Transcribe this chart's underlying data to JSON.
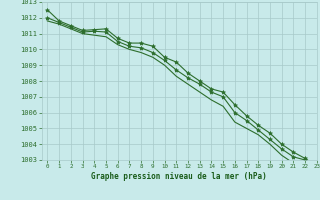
{
  "title": "Graphe pression niveau de la mer (hPa)",
  "x": [
    0,
    1,
    2,
    3,
    4,
    5,
    6,
    7,
    8,
    9,
    10,
    11,
    12,
    13,
    14,
    15,
    16,
    17,
    18,
    19,
    20,
    21,
    22,
    23
  ],
  "line1": [
    1012.5,
    1011.8,
    1011.5,
    1011.2,
    1011.25,
    1011.3,
    1010.7,
    1010.4,
    1010.4,
    1010.2,
    1009.5,
    1009.2,
    1008.5,
    1008.0,
    1007.5,
    1007.3,
    1006.5,
    1005.8,
    1005.2,
    1004.7,
    1004.0,
    1003.5,
    1003.1,
    1002.6
  ],
  "line2": [
    1012.0,
    1011.7,
    1011.4,
    1011.1,
    1011.15,
    1011.1,
    1010.5,
    1010.2,
    1010.1,
    1009.8,
    1009.3,
    1008.7,
    1008.2,
    1007.8,
    1007.3,
    1007.0,
    1006.0,
    1005.5,
    1004.9,
    1004.3,
    1003.7,
    1003.2,
    1003.0,
    1002.7
  ],
  "line3": [
    1011.8,
    1011.6,
    1011.3,
    1011.0,
    1010.9,
    1010.8,
    1010.3,
    1010.0,
    1009.8,
    1009.5,
    1009.0,
    1008.3,
    1007.8,
    1007.3,
    1006.8,
    1006.4,
    1005.4,
    1005.0,
    1004.6,
    1004.0,
    1003.3,
    1002.8,
    1002.7,
    1002.4
  ],
  "ylim": [
    1003,
    1013
  ],
  "xlim": [
    -0.5,
    23
  ],
  "bg_color": "#c8eaea",
  "line_color": "#2d6e2d",
  "grid_color": "#a8caca",
  "title_color": "#1a5c1a",
  "marker": "*",
  "yticks": [
    1003,
    1004,
    1005,
    1006,
    1007,
    1008,
    1009,
    1010,
    1011,
    1012,
    1013
  ]
}
